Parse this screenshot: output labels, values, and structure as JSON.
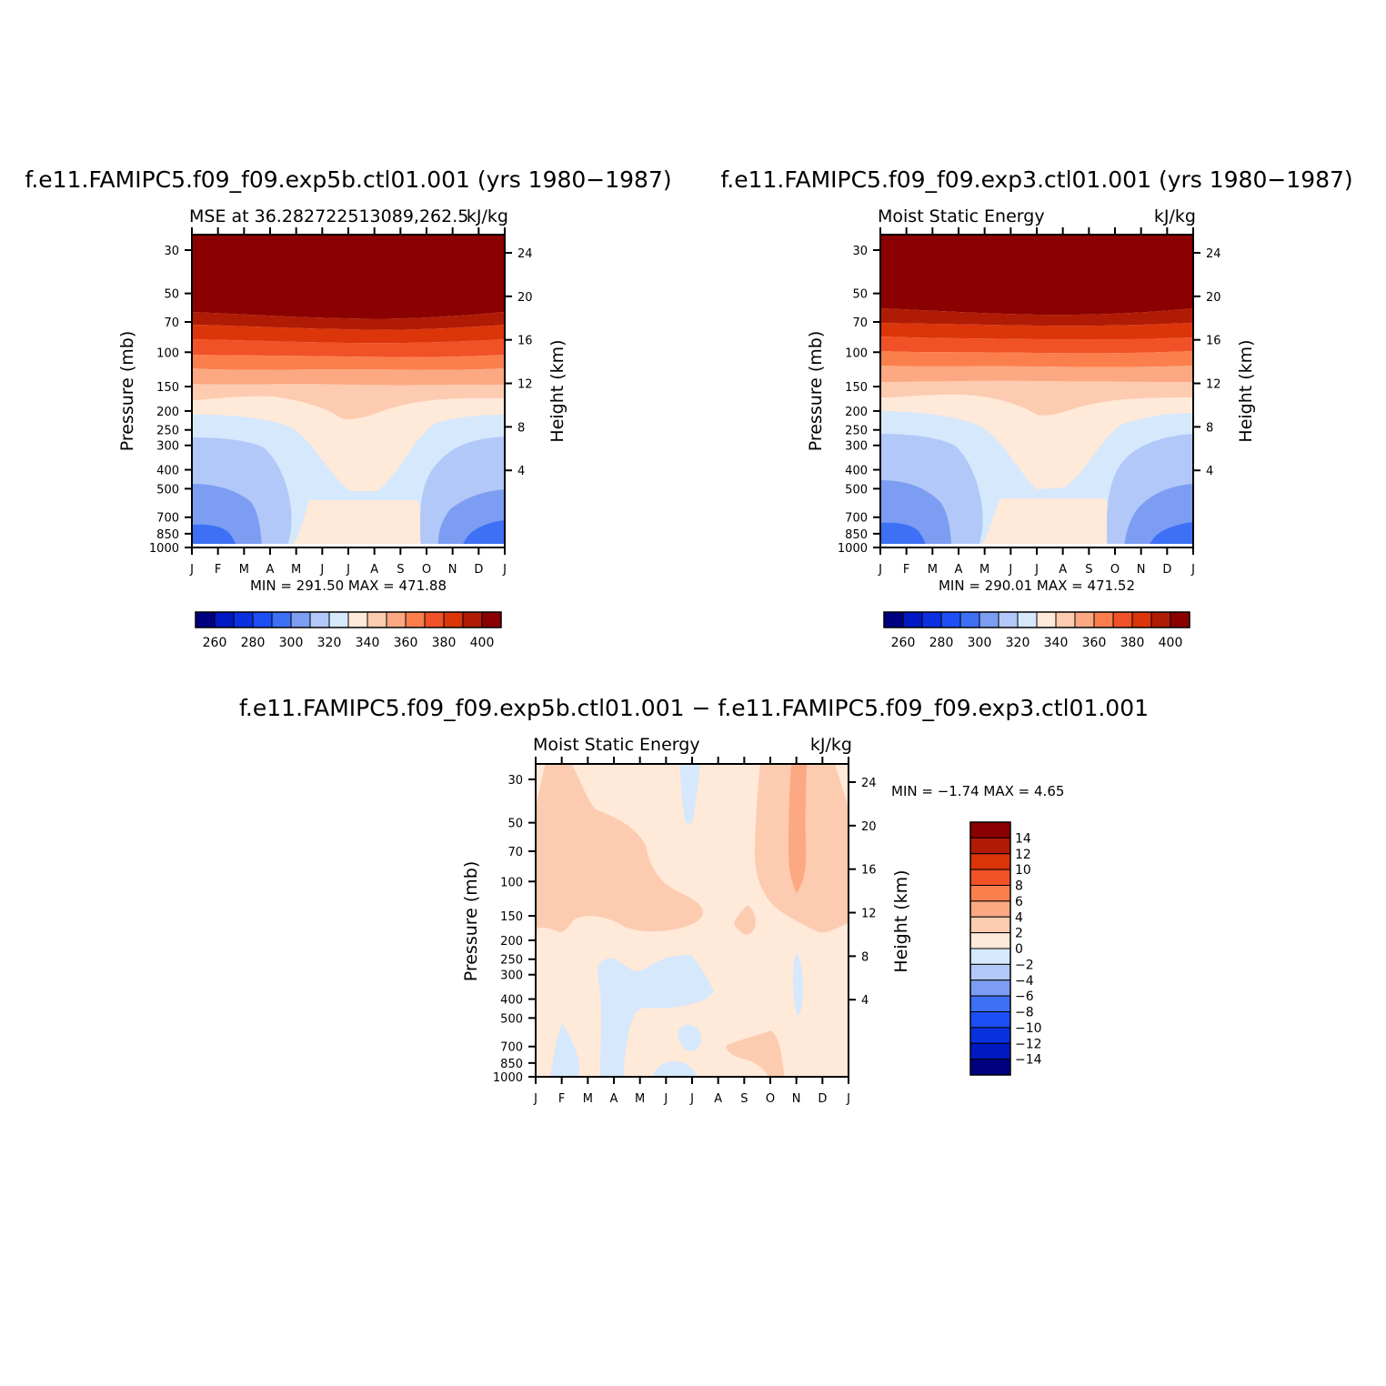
{
  "panels": [
    {
      "title": "f.e11.FAMIPC5.f09_f09.exp5b.ctl01.001 (yrs 1980−1987)",
      "left_label": "MSE at 36.282722513089,262.5",
      "right_label": "kJ/kg",
      "ylabel": "Pressure (mb)",
      "y2label": "Height (km)",
      "stats": "MIN = 291.50  MAX = 471.88"
    },
    {
      "title": "f.e11.FAMIPC5.f09_f09.exp3.ctl01.001 (yrs 1980−1987)",
      "left_label": "Moist Static Energy",
      "right_label": "kJ/kg",
      "ylabel": "Pressure (mb)",
      "y2label": "Height (km)",
      "stats": "MIN = 290.01  MAX = 471.52"
    },
    {
      "title": "f.e11.FAMIPC5.f09_f09.exp5b.ctl01.001 − f.e11.FAMIPC5.f09_f09.exp3.ctl01.001",
      "left_label": "Moist Static Energy",
      "right_label": "kJ/kg",
      "ylabel": "Pressure (mb)",
      "y2label": "Height (km)",
      "stats": "MIN =   −1.74  MAX =    4.65"
    }
  ],
  "colors": {
    "abs_scale": [
      "#000080",
      "#0019c2",
      "#0a31e0",
      "#1c4ff5",
      "#3d70f5",
      "#7c9df2",
      "#b2c8f8",
      "#d6e8fc",
      "#ffe9d8",
      "#fccbb0",
      "#fca882",
      "#fb7f4d",
      "#f15127",
      "#db3509",
      "#b01b06",
      "#8b0000"
    ],
    "diff_scale": [
      "#000080",
      "#0019c2",
      "#0a31e0",
      "#1c4ff5",
      "#3d70f5",
      "#7c9df2",
      "#b2c8f8",
      "#d6e8fc",
      "#ffe9d8",
      "#fccbb0",
      "#fca882",
      "#fb7f4d",
      "#f15127",
      "#db3509",
      "#b01b06",
      "#8b0000"
    ]
  },
  "chart_data": [
    {
      "type": "contour",
      "title": "f.e11.FAMIPC5.f09_f09.exp5b.ctl01.001 (yrs 1980−1987)",
      "variable": "MSE at 36.282722513089,262.5",
      "units": "kJ/kg",
      "x_tick_labels": [
        "J",
        "F",
        "M",
        "A",
        "M",
        "J",
        "J",
        "A",
        "S",
        "O",
        "N",
        "D",
        "J"
      ],
      "pressure_ticks": [
        30,
        50,
        70,
        100,
        150,
        200,
        250,
        300,
        400,
        500,
        700,
        850,
        1000
      ],
      "height_ticks": [
        24,
        20,
        16,
        12,
        8,
        4
      ],
      "ylabel": "Pressure (mb)",
      "y2label": "Height (km)",
      "colorbar_labels": [
        "260",
        "280",
        "300",
        "320",
        "340",
        "360",
        "380",
        "400"
      ],
      "colorbar_levels": [
        260,
        270,
        280,
        290,
        300,
        310,
        320,
        330,
        340,
        350,
        360,
        370,
        380,
        390,
        400
      ],
      "min": 291.5,
      "max": 471.88
    },
    {
      "type": "contour",
      "title": "f.e11.FAMIPC5.f09_f09.exp3.ctl01.001 (yrs 1980−1987)",
      "variable": "Moist Static Energy",
      "units": "kJ/kg",
      "x_tick_labels": [
        "J",
        "F",
        "M",
        "A",
        "M",
        "J",
        "J",
        "A",
        "S",
        "O",
        "N",
        "D",
        "J"
      ],
      "pressure_ticks": [
        30,
        50,
        70,
        100,
        150,
        200,
        250,
        300,
        400,
        500,
        700,
        850,
        1000
      ],
      "height_ticks": [
        24,
        20,
        16,
        12,
        8,
        4
      ],
      "ylabel": "Pressure (mb)",
      "y2label": "Height (km)",
      "colorbar_labels": [
        "260",
        "280",
        "300",
        "320",
        "340",
        "360",
        "380",
        "400"
      ],
      "colorbar_levels": [
        260,
        270,
        280,
        290,
        300,
        310,
        320,
        330,
        340,
        350,
        360,
        370,
        380,
        390,
        400
      ],
      "min": 290.01,
      "max": 471.52
    },
    {
      "type": "contour",
      "title": "f.e11.FAMIPC5.f09_f09.exp5b.ctl01.001 − f.e11.FAMIPC5.f09_f09.exp3.ctl01.001",
      "variable": "Moist Static Energy",
      "units": "kJ/kg",
      "x_tick_labels": [
        "J",
        "F",
        "M",
        "A",
        "M",
        "J",
        "J",
        "A",
        "S",
        "O",
        "N",
        "D",
        "J"
      ],
      "pressure_ticks": [
        30,
        50,
        70,
        100,
        150,
        200,
        250,
        300,
        400,
        500,
        700,
        850,
        1000
      ],
      "height_ticks": [
        24,
        20,
        16,
        12,
        8,
        4
      ],
      "ylabel": "Pressure (mb)",
      "y2label": "Height (km)",
      "colorbar_labels": [
        "14",
        "12",
        "10",
        "8",
        "6",
        "4",
        "2",
        "0",
        "−2",
        "−4",
        "−6",
        "−8",
        "−10",
        "−12",
        "−14"
      ],
      "colorbar_levels": [
        14,
        12,
        10,
        8,
        6,
        4,
        2,
        0,
        -2,
        -4,
        -6,
        -8,
        -10,
        -12,
        -14
      ],
      "min": -1.74,
      "max": 4.65
    }
  ]
}
